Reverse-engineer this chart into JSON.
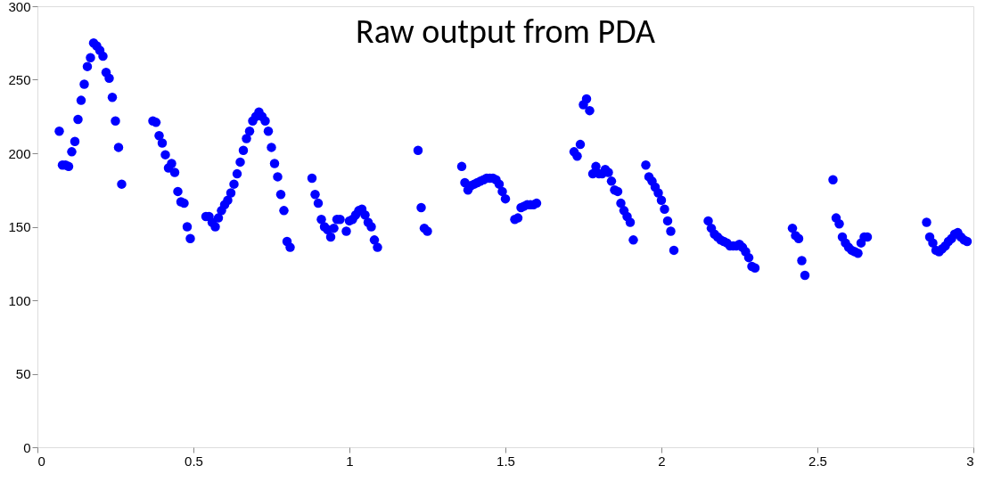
{
  "chart_data": {
    "type": "scatter",
    "title": "Raw output from PDA",
    "xlim": [
      0,
      3
    ],
    "ylim": [
      0,
      300
    ],
    "xticks": [
      0,
      0.5,
      1,
      1.5,
      2,
      2.5,
      3
    ],
    "yticks": [
      0,
      50,
      100,
      150,
      200,
      250,
      300
    ],
    "grid": false,
    "legend": false,
    "marker": "circle",
    "series": [
      {
        "color": "#0000ff",
        "x": [
          0.07,
          0.08,
          0.09,
          0.1,
          0.11,
          0.12,
          0.13,
          0.14,
          0.15,
          0.16,
          0.17,
          0.18,
          0.19,
          0.2,
          0.21,
          0.22,
          0.23,
          0.24,
          0.25,
          0.26,
          0.27,
          0.37,
          0.38,
          0.39,
          0.4,
          0.41,
          0.42,
          0.43,
          0.44,
          0.45,
          0.46,
          0.47,
          0.48,
          0.49,
          0.54,
          0.55,
          0.56,
          0.57,
          0.58,
          0.59,
          0.6,
          0.61,
          0.62,
          0.63,
          0.64,
          0.65,
          0.66,
          0.67,
          0.68,
          0.69,
          0.7,
          0.71,
          0.72,
          0.73,
          0.74,
          0.75,
          0.76,
          0.77,
          0.78,
          0.79,
          0.8,
          0.81,
          0.88,
          0.89,
          0.9,
          0.91,
          0.92,
          0.93,
          0.94,
          0.95,
          0.96,
          0.97,
          0.99,
          1.0,
          1.01,
          1.02,
          1.03,
          1.04,
          1.05,
          1.06,
          1.07,
          1.08,
          1.09,
          1.22,
          1.23,
          1.24,
          1.25,
          1.36,
          1.37,
          1.38,
          1.39,
          1.4,
          1.41,
          1.42,
          1.43,
          1.44,
          1.45,
          1.46,
          1.47,
          1.48,
          1.49,
          1.5,
          1.53,
          1.54,
          1.55,
          1.56,
          1.57,
          1.58,
          1.59,
          1.6,
          1.72,
          1.73,
          1.74,
          1.75,
          1.76,
          1.77,
          1.78,
          1.79,
          1.8,
          1.81,
          1.82,
          1.83,
          1.84,
          1.85,
          1.86,
          1.87,
          1.88,
          1.89,
          1.9,
          1.91,
          1.95,
          1.96,
          1.97,
          1.98,
          1.99,
          2.0,
          2.01,
          2.02,
          2.03,
          2.04,
          2.15,
          2.16,
          2.17,
          2.18,
          2.19,
          2.2,
          2.21,
          2.22,
          2.23,
          2.24,
          2.25,
          2.26,
          2.27,
          2.28,
          2.29,
          2.3,
          2.42,
          2.43,
          2.44,
          2.45,
          2.46,
          2.55,
          2.56,
          2.57,
          2.58,
          2.59,
          2.6,
          2.61,
          2.62,
          2.63,
          2.64,
          2.65,
          2.66,
          2.85,
          2.86,
          2.87,
          2.88,
          2.89,
          2.9,
          2.91,
          2.92,
          2.93,
          2.94,
          2.95,
          2.96,
          2.97,
          2.98
        ],
        "values": [
          215,
          192,
          192,
          191,
          201,
          208,
          223,
          236,
          247,
          259,
          265,
          275,
          273,
          270,
          266,
          255,
          251,
          238,
          222,
          204,
          179,
          222,
          221,
          212,
          207,
          199,
          190,
          193,
          187,
          174,
          167,
          166,
          150,
          142,
          157,
          157,
          153,
          150,
          156,
          161,
          165,
          168,
          173,
          179,
          186,
          194,
          202,
          210,
          215,
          222,
          225,
          228,
          225,
          222,
          215,
          204,
          193,
          184,
          172,
          161,
          140,
          136,
          183,
          172,
          166,
          155,
          150,
          148,
          143,
          149,
          155,
          155,
          147,
          154,
          155,
          158,
          161,
          162,
          158,
          153,
          150,
          141,
          136,
          202,
          163,
          149,
          147,
          191,
          180,
          175,
          178,
          179,
          180,
          181,
          182,
          183,
          183,
          183,
          182,
          179,
          174,
          169,
          155,
          156,
          163,
          164,
          165,
          165,
          165,
          166,
          201,
          198,
          206,
          233,
          237,
          229,
          186,
          191,
          186,
          186,
          189,
          187,
          181,
          175,
          174,
          166,
          161,
          157,
          153,
          141,
          192,
          184,
          181,
          177,
          173,
          168,
          162,
          154,
          147,
          134,
          154,
          149,
          145,
          143,
          141,
          140,
          139,
          137,
          137,
          137,
          138,
          136,
          133,
          129,
          123,
          122,
          149,
          144,
          142,
          127,
          117,
          182,
          156,
          152,
          143,
          139,
          136,
          134,
          133,
          132,
          139,
          143,
          143,
          153,
          143,
          139,
          134,
          133,
          135,
          137,
          140,
          142,
          145,
          146,
          143,
          141,
          140
        ]
      }
    ]
  }
}
